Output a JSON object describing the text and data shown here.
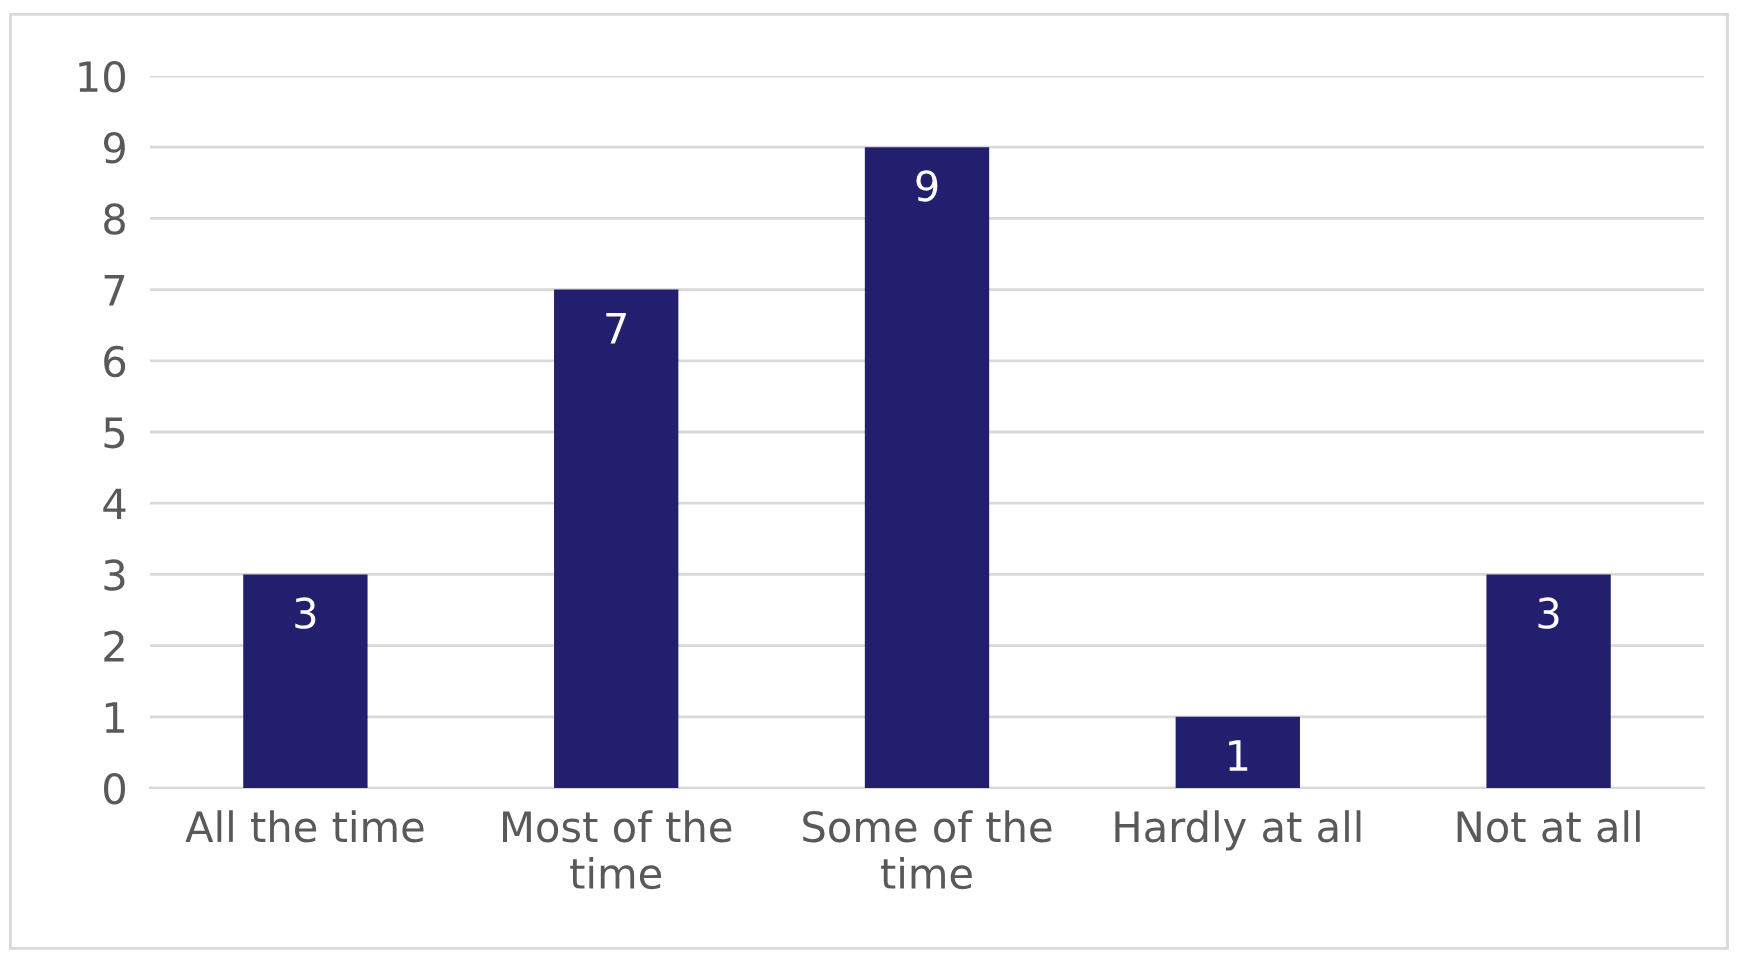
{
  "chart_data": {
    "type": "bar",
    "categories": [
      "All the time",
      "Most of the time",
      "Some of the time",
      "Hardly at all",
      "Not at all"
    ],
    "values": [
      3,
      7,
      9,
      1,
      3
    ],
    "color": "#221f6e",
    "ylim": [
      0,
      10
    ],
    "yticks": [
      0,
      1,
      2,
      3,
      4,
      5,
      6,
      7,
      8,
      9,
      10
    ],
    "grid": "y",
    "data_labels": true,
    "legend": false
  }
}
